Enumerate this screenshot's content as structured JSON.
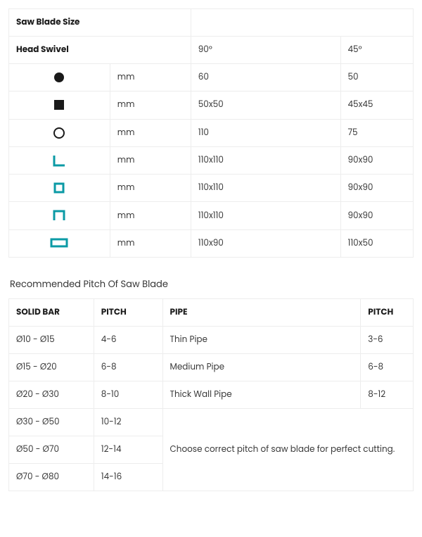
{
  "colors": {
    "border": "#ededed",
    "text": "#3a3a3a",
    "header_text": "#1c1c1c",
    "icon_black": "#1a1a1a",
    "icon_accent": "#0b9aa5",
    "background": "#ffffff"
  },
  "table1": {
    "title": "Saw Blade Size",
    "head_swivel_label": "Head Swivel",
    "angle_a": "90°",
    "angle_b": "45°",
    "unit": "mm",
    "rows": [
      {
        "shape": "solid-circle",
        "a": "60",
        "b": "50"
      },
      {
        "shape": "solid-square",
        "a": "50x50",
        "b": "45x45"
      },
      {
        "shape": "hollow-circle",
        "a": "110",
        "b": "75"
      },
      {
        "shape": "angle",
        "a": "110x110",
        "b": "90x90"
      },
      {
        "shape": "hollow-square",
        "a": "110x110",
        "b": "90x90"
      },
      {
        "shape": "channel",
        "a": "110x110",
        "b": "90x90"
      },
      {
        "shape": "flat-rect",
        "a": "110x90",
        "b": "110x50"
      }
    ]
  },
  "table2": {
    "title": "Recommended Pitch Of Saw Blade",
    "headers": {
      "solid_bar": "SOLID BAR",
      "pitch_a": "PITCH",
      "pipe": "PIPE",
      "pitch_b": "PITCH"
    },
    "rows": [
      {
        "solid": "Ø10 - Ø15",
        "pitch_a": "4-6",
        "pipe": "Thin Pipe",
        "pitch_b": "3-6"
      },
      {
        "solid": "Ø15 - Ø20",
        "pitch_a": "6-8",
        "pipe": "Medium Pipe",
        "pitch_b": "6-8"
      },
      {
        "solid": "Ø20 - Ø30",
        "pitch_a": "8-10",
        "pipe": "Thick Wall Pipe",
        "pitch_b": "8-12"
      }
    ],
    "note": "Choose correct pitch of saw blade for perfect cutting.",
    "extra_rows": [
      {
        "solid": "Ø30 - Ø50",
        "pitch_a": "10-12"
      },
      {
        "solid": "Ø50 - Ø70",
        "pitch_a": "12-14"
      },
      {
        "solid": "Ø70 - Ø80",
        "pitch_a": "14-16"
      }
    ]
  }
}
